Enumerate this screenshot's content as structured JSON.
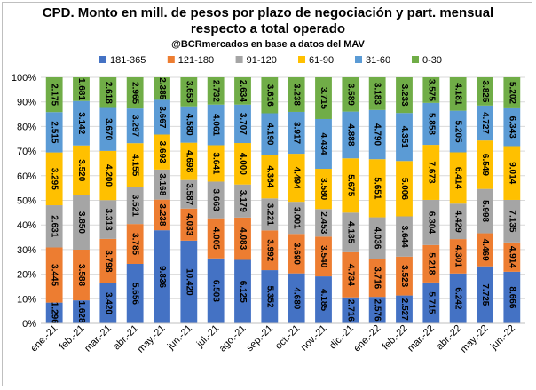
{
  "chart_data": {
    "type": "bar",
    "stacked": true,
    "normalized_percent": true,
    "title_line1": "CPD. Monto en mill. de pesos por plazo de negociación y part. mensual",
    "title_line2": "respecto a total operado",
    "subtitle": "@BCRmercados en base a datos del MAV",
    "categories": [
      "ene.-21",
      "feb.-21",
      "mar.-21",
      "abr.-21",
      "may.-21",
      "jun.-21",
      "jul.-21",
      "ago.-21",
      "sep.-21",
      "oct.-21",
      "nov.-21",
      "dic.-21",
      "ene.-22",
      "feb.-22",
      "mar.-22",
      "abr.-22",
      "may.-22",
      "jun.-22"
    ],
    "y_ticks": [
      "0%",
      "10%",
      "20%",
      "30%",
      "40%",
      "50%",
      "60%",
      "70%",
      "80%",
      "90%",
      "100%"
    ],
    "ylim": [
      0,
      100
    ],
    "legend_position": "top",
    "series": [
      {
        "name": "181-365",
        "color": "#4472C4",
        "values": [
          1.296,
          1.628,
          3.42,
          5.656,
          9.836,
          10.42,
          6.503,
          6.125,
          5.352,
          4.68,
          4.185,
          2.716,
          2.576,
          2.527,
          5.715,
          6.242,
          7.725,
          8.666
        ]
      },
      {
        "name": "121-180",
        "color": "#ED7D31",
        "values": [
          3.445,
          3.588,
          3.798,
          3.785,
          3.238,
          4.033,
          4.005,
          4.083,
          3.992,
          3.69,
          3.54,
          4.734,
          3.716,
          3.523,
          5.218,
          4.301,
          4.469,
          4.914
        ]
      },
      {
        "name": "91-120",
        "color": "#A5A5A5",
        "values": [
          2.631,
          3.85,
          3.313,
          3.521,
          3.168,
          3.587,
          3.663,
          3.179,
          3.221,
          3.001,
          2.453,
          4.135,
          4.036,
          3.644,
          6.304,
          4.429,
          5.998,
          7.135
        ]
      },
      {
        "name": "61-90",
        "color": "#FFC000",
        "values": [
          3.295,
          3.52,
          4.2,
          4.155,
          3.693,
          4.698,
          3.641,
          4.0,
          4.364,
          4.494,
          3.58,
          5.675,
          5.651,
          5.006,
          7.673,
          6.414,
          6.549,
          9.014
        ]
      },
      {
        "name": "31-60",
        "color": "#5B9BD5",
        "values": [
          2.515,
          3.142,
          3.67,
          3.297,
          3.667,
          4.58,
          4.061,
          3.707,
          4.19,
          3.917,
          4.434,
          4.888,
          4.79,
          4.351,
          5.858,
          5.205,
          4.727,
          6.343
        ]
      },
      {
        "name": "0-30",
        "color": "#70AD47",
        "values": [
          2.175,
          1.681,
          2.618,
          2.965,
          2.385,
          3.658,
          2.732,
          2.634,
          3.616,
          3.238,
          3.715,
          3.589,
          3.183,
          3.233,
          3.575,
          4.181,
          3.825,
          5.202
        ]
      }
    ]
  }
}
